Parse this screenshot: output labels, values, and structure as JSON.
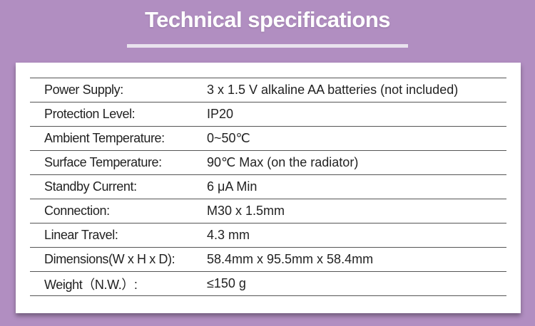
{
  "header": {
    "title": "Technical specifications"
  },
  "table": {
    "rows": [
      [
        "Power Supply:",
        "3 x 1.5 V alkaline AA batteries (not included)"
      ],
      [
        "Protection Level:",
        "IP20"
      ],
      [
        "Ambient Temperature:",
        "0~50℃"
      ],
      [
        "Surface Temperature:",
        "90℃ Max (on the radiator)"
      ],
      [
        "Standby Current:",
        "6 μA Min"
      ],
      [
        "Connection:",
        "M30 x 1.5mm"
      ],
      [
        "Linear Travel:",
        "4.3 mm"
      ],
      [
        "Dimensions(W x H x D):",
        "58.4mm x 95.5mm x 58.4mm"
      ],
      [
        "Weight（N.W.）:",
        "≤150 g"
      ]
    ]
  }
}
